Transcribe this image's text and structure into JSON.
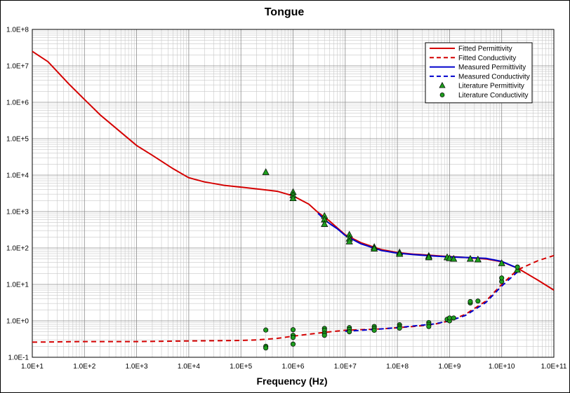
{
  "chart_data": {
    "type": "line",
    "title": "Tongue",
    "xlabel": "Frequency (Hz)",
    "ylabel": "",
    "x_scale": "log",
    "y_scale": "log",
    "xlim": [
      10,
      100000000000
    ],
    "ylim": [
      0.1,
      100000000
    ],
    "grid": true,
    "legend_position": "top-right",
    "x_ticks": [
      "1.0E+1",
      "1.0E+2",
      "1.0E+3",
      "1.0E+4",
      "1.0E+5",
      "1.0E+6",
      "1.0E+7",
      "1.0E+8",
      "1.0E+9",
      "1.0E+10",
      "1.0E+11"
    ],
    "y_ticks": [
      "1.0E-1",
      "1.0E+0",
      "1.0E+1",
      "1.0E+2",
      "1.0E+3",
      "1.0E+4",
      "1.0E+5",
      "1.0E+6",
      "1.0E+7",
      "1.0E+8"
    ],
    "series": [
      {
        "name": "Fitted Permittivity",
        "kind": "line",
        "style": "solid",
        "color": "#d40000",
        "points": [
          [
            10,
            25000000
          ],
          [
            20,
            13000000
          ],
          [
            50,
            3200000
          ],
          [
            100,
            1200000
          ],
          [
            200,
            450000
          ],
          [
            500,
            150000
          ],
          [
            1000,
            65000
          ],
          [
            2000,
            35000
          ],
          [
            5000,
            15000
          ],
          [
            10000,
            8500
          ],
          [
            20000,
            6500
          ],
          [
            50000,
            5200
          ],
          [
            100000,
            4700
          ],
          [
            200000,
            4200
          ],
          [
            500000,
            3600
          ],
          [
            1000000,
            2700
          ],
          [
            2000000,
            1600
          ],
          [
            3000000,
            950
          ],
          [
            5000000,
            550
          ],
          [
            10000000,
            230
          ],
          [
            20000000,
            140
          ],
          [
            50000000,
            90
          ],
          [
            100000000,
            75
          ],
          [
            200000000,
            68
          ],
          [
            500000000,
            62
          ],
          [
            1000000000,
            58
          ],
          [
            2000000000,
            55
          ],
          [
            5000000000,
            50
          ],
          [
            10000000000,
            42
          ],
          [
            20000000000,
            28
          ],
          [
            50000000000,
            13
          ],
          [
            100000000000,
            7
          ]
        ]
      },
      {
        "name": "Fitted Conductivity",
        "kind": "line",
        "style": "dashed",
        "color": "#d40000",
        "points": [
          [
            10,
            0.26
          ],
          [
            100,
            0.27
          ],
          [
            1000,
            0.27
          ],
          [
            10000,
            0.28
          ],
          [
            100000,
            0.29
          ],
          [
            200000,
            0.3
          ],
          [
            500000,
            0.33
          ],
          [
            1000000,
            0.38
          ],
          [
            2000000,
            0.43
          ],
          [
            5000000,
            0.5
          ],
          [
            10000000,
            0.55
          ],
          [
            50000000,
            0.6
          ],
          [
            100000000,
            0.65
          ],
          [
            200000000,
            0.7
          ],
          [
            500000000,
            0.8
          ],
          [
            1000000000,
            1
          ],
          [
            2000000000,
            1.5
          ],
          [
            5000000000,
            3.5
          ],
          [
            10000000000,
            10
          ],
          [
            20000000000,
            25
          ],
          [
            50000000000,
            45
          ],
          [
            100000000000,
            62
          ]
        ]
      },
      {
        "name": "Measured Permittivity",
        "kind": "line",
        "style": "solid",
        "color": "#0000cc",
        "points": [
          [
            3000000,
            900
          ],
          [
            4000000,
            600
          ],
          [
            5000000,
            470
          ],
          [
            7000000,
            340
          ],
          [
            10000000,
            220
          ],
          [
            20000000,
            130
          ],
          [
            50000000,
            85
          ],
          [
            100000000,
            72
          ],
          [
            200000000,
            66
          ],
          [
            500000000,
            60
          ],
          [
            1000000000,
            57
          ],
          [
            2000000000,
            55
          ],
          [
            5000000000,
            52
          ],
          [
            10000000000,
            43
          ],
          [
            20000000000,
            28
          ]
        ]
      },
      {
        "name": "Measured Conductivity",
        "kind": "line",
        "style": "dashed",
        "color": "#0000cc",
        "points": [
          [
            10000000,
            0.52
          ],
          [
            20000000,
            0.55
          ],
          [
            50000000,
            0.6
          ],
          [
            100000000,
            0.65
          ],
          [
            200000000,
            0.72
          ],
          [
            500000000,
            0.82
          ],
          [
            1000000000,
            1.0
          ],
          [
            2000000000,
            1.4
          ],
          [
            5000000000,
            3.2
          ],
          [
            10000000000,
            9
          ],
          [
            20000000000,
            22
          ]
        ]
      },
      {
        "name": "Literature Permittivity",
        "kind": "scatter",
        "marker": "triangle",
        "color": "#1e9e1e",
        "points": [
          [
            300000,
            12000
          ],
          [
            1000000,
            3400
          ],
          [
            1000000,
            2800
          ],
          [
            1000000,
            2300
          ],
          [
            4000000,
            750
          ],
          [
            4000000,
            600
          ],
          [
            4000000,
            450
          ],
          [
            12000000,
            230
          ],
          [
            12000000,
            180
          ],
          [
            12000000,
            150
          ],
          [
            36000000,
            105
          ],
          [
            36000000,
            95
          ],
          [
            110000000,
            75
          ],
          [
            110000000,
            68
          ],
          [
            400000000,
            60
          ],
          [
            400000000,
            55
          ],
          [
            900000000,
            55
          ],
          [
            1000000000,
            52
          ],
          [
            1200000000,
            50
          ],
          [
            2500000000,
            50
          ],
          [
            3500000000,
            48
          ],
          [
            10000000000,
            38
          ],
          [
            20000000000,
            25
          ]
        ]
      },
      {
        "name": "Literature Conductivity",
        "kind": "scatter",
        "marker": "circle",
        "color": "#1e9e1e",
        "points": [
          [
            300000,
            0.56
          ],
          [
            300000,
            0.2
          ],
          [
            300000,
            0.18
          ],
          [
            1000000,
            0.57
          ],
          [
            1000000,
            0.4
          ],
          [
            1000000,
            0.35
          ],
          [
            1000000,
            0.23
          ],
          [
            4000000,
            0.62
          ],
          [
            4000000,
            0.55
          ],
          [
            4000000,
            0.45
          ],
          [
            4000000,
            0.4
          ],
          [
            12000000,
            0.65
          ],
          [
            12000000,
            0.58
          ],
          [
            12000000,
            0.5
          ],
          [
            36000000,
            0.7
          ],
          [
            36000000,
            0.62
          ],
          [
            36000000,
            0.55
          ],
          [
            110000000,
            0.78
          ],
          [
            110000000,
            0.7
          ],
          [
            110000000,
            0.63
          ],
          [
            400000000,
            0.9
          ],
          [
            400000000,
            0.8
          ],
          [
            400000000,
            0.7
          ],
          [
            900000000,
            1.1
          ],
          [
            1000000000,
            1.0
          ],
          [
            1000000000,
            1.2
          ],
          [
            1200000000,
            1.2
          ],
          [
            2500000000,
            3.1
          ],
          [
            2500000000,
            3.4
          ],
          [
            3500000000,
            3.5
          ],
          [
            10000000000,
            12
          ],
          [
            10000000000,
            15
          ],
          [
            20000000000,
            30
          ]
        ]
      }
    ]
  }
}
